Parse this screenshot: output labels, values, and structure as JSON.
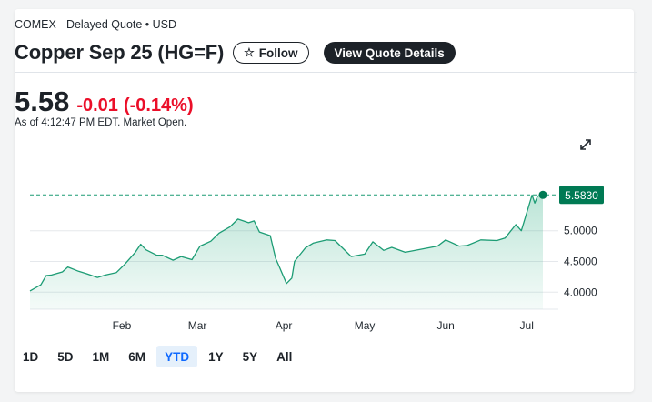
{
  "header": {
    "exchange": "COMEX - Delayed Quote • USD",
    "title": "Copper Sep 25 (HG=F)",
    "follow_label": "Follow",
    "details_label": "View Quote Details"
  },
  "quote": {
    "price": "5.58",
    "change": "-0.01",
    "change_pct": "(-0.14%)",
    "as_of": "As of 4:12:47 PM EDT. Market Open."
  },
  "colors": {
    "line": "#1c9c74",
    "area": "#2fae83",
    "badge": "#007a54",
    "negative": "#eb0f29",
    "active_tab": "#0f69ff"
  },
  "icons": {
    "follow": "star-icon",
    "expand": "expand-icon"
  },
  "ranges": {
    "items": [
      "1D",
      "5D",
      "1M",
      "6M",
      "YTD",
      "1Y",
      "5Y",
      "All"
    ],
    "active": "YTD"
  },
  "chart_data": {
    "type": "area",
    "x_tick_labels": [
      "Feb",
      "Mar",
      "Apr",
      "May",
      "Jun",
      "Jul"
    ],
    "y_tick_labels": [
      "4.0000",
      "4.5000",
      "5.0000"
    ],
    "y_ticks": [
      4.0,
      4.5,
      5.0
    ],
    "ylim": [
      3.8,
      5.8
    ],
    "last_value_label": "5.5830",
    "last_value": 5.583,
    "grid": "horizontal",
    "x": [
      "Jan 02",
      "Jan 06",
      "Jan 08",
      "Jan 10",
      "Jan 14",
      "Jan 16",
      "Jan 20",
      "Jan 23",
      "Jan 27",
      "Jan 30",
      "Feb 03",
      "Feb 06",
      "Feb 10",
      "Feb 12",
      "Feb 14",
      "Feb 18",
      "Feb 20",
      "Feb 24",
      "Feb 27",
      "Mar 03",
      "Mar 06",
      "Mar 10",
      "Mar 13",
      "Mar 17",
      "Mar 20",
      "Mar 24",
      "Mar 26",
      "Mar 28",
      "Apr 01",
      "Apr 03",
      "Apr 04",
      "Apr 07",
      "Apr 09",
      "Apr 10",
      "Apr 14",
      "Apr 17",
      "Apr 22",
      "Apr 25",
      "May 01",
      "May 06",
      "May 09",
      "May 13",
      "May 16",
      "May 21",
      "May 27",
      "Jun 02",
      "Jun 05",
      "Jun 10",
      "Jun 13",
      "Jun 18",
      "Jun 24",
      "Jun 27",
      "Jul 01",
      "Jul 03",
      "Jul 07",
      "Jul 08",
      "Jul 09",
      "Jul 11"
    ],
    "values": [
      4.02,
      4.12,
      4.27,
      4.28,
      4.33,
      4.41,
      4.34,
      4.3,
      4.24,
      4.28,
      4.32,
      4.45,
      4.65,
      4.78,
      4.69,
      4.6,
      4.6,
      4.52,
      4.58,
      4.53,
      4.75,
      4.83,
      4.96,
      5.06,
      5.19,
      5.13,
      5.16,
      4.98,
      4.92,
      4.55,
      4.45,
      4.14,
      4.23,
      4.5,
      4.72,
      4.8,
      4.85,
      4.84,
      4.58,
      4.62,
      4.82,
      4.68,
      4.73,
      4.65,
      4.7,
      4.75,
      4.85,
      4.75,
      4.76,
      4.85,
      4.84,
      4.88,
      5.1,
      5.0,
      5.58,
      5.45,
      5.56,
      5.583
    ]
  }
}
